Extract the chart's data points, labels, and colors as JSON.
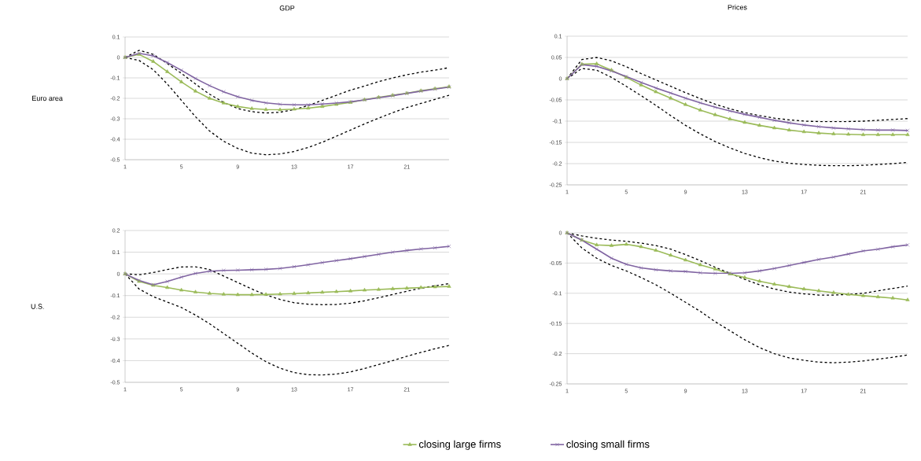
{
  "chart_data": [
    {
      "type": "line",
      "title": "GDP",
      "ylabel": "Euro area",
      "x": [
        1,
        2,
        3,
        4,
        5,
        6,
        7,
        8,
        9,
        10,
        11,
        12,
        13,
        14,
        15,
        16,
        17,
        18,
        19,
        20,
        21,
        22,
        23,
        24
      ],
      "xlim": [
        1,
        24
      ],
      "xticks": [
        1,
        5,
        9,
        13,
        17,
        21
      ],
      "ylim": [
        -0.5,
        0.1
      ],
      "yticks": [
        0.1,
        0,
        -0.1,
        -0.2,
        -0.3,
        -0.4,
        -0.5
      ],
      "grid": "y",
      "series": [
        {
          "color": "#9bbb59",
          "marker": "triangle",
          "line_style": "solid",
          "values": [
            0,
            0.015,
            -0.02,
            -0.07,
            -0.12,
            -0.165,
            -0.2,
            -0.223,
            -0.24,
            -0.25,
            -0.255,
            -0.256,
            -0.253,
            -0.248,
            -0.24,
            -0.23,
            -0.22,
            -0.207,
            -0.195,
            -0.185,
            -0.175,
            -0.163,
            -0.153,
            -0.143
          ]
        },
        {
          "color": "#8064a2",
          "marker": "cross",
          "line_style": "solid",
          "values": [
            0,
            0.02,
            0.008,
            -0.025,
            -0.063,
            -0.103,
            -0.138,
            -0.168,
            -0.192,
            -0.21,
            -0.222,
            -0.229,
            -0.232,
            -0.232,
            -0.228,
            -0.223,
            -0.217,
            -0.208,
            -0.197,
            -0.187,
            -0.176,
            -0.165,
            -0.155,
            -0.145
          ]
        },
        {
          "color": "#000000",
          "marker": "none",
          "line_style": "dashed",
          "values": [
            0,
            0.035,
            0.015,
            -0.03,
            -0.078,
            -0.13,
            -0.18,
            -0.22,
            -0.25,
            -0.265,
            -0.272,
            -0.268,
            -0.255,
            -0.235,
            -0.21,
            -0.185,
            -0.16,
            -0.14,
            -0.118,
            -0.1,
            -0.085,
            -0.072,
            -0.062,
            -0.05
          ]
        },
        {
          "color": "#000000",
          "marker": "none",
          "line_style": "dashed",
          "values": [
            0,
            -0.015,
            -0.06,
            -0.13,
            -0.21,
            -0.29,
            -0.36,
            -0.41,
            -0.445,
            -0.468,
            -0.476,
            -0.472,
            -0.46,
            -0.44,
            -0.415,
            -0.385,
            -0.355,
            -0.325,
            -0.297,
            -0.27,
            -0.245,
            -0.225,
            -0.205,
            -0.185
          ]
        }
      ]
    },
    {
      "type": "line",
      "title": "Prices",
      "x": [
        1,
        2,
        3,
        4,
        5,
        6,
        7,
        8,
        9,
        10,
        11,
        12,
        13,
        14,
        15,
        16,
        17,
        18,
        19,
        20,
        21,
        22,
        23,
        24
      ],
      "xlim": [
        1,
        24
      ],
      "xticks": [
        1,
        5,
        9,
        13,
        17,
        21
      ],
      "ylim": [
        -0.25,
        0.1
      ],
      "yticks": [
        0.1,
        0.05,
        0,
        -0.05,
        -0.1,
        -0.15,
        -0.2,
        -0.25
      ],
      "grid": "y",
      "series": [
        {
          "color": "#9bbb59",
          "marker": "triangle",
          "line_style": "solid",
          "values": [
            0,
            0.034,
            0.035,
            0.02,
            0.003,
            -0.015,
            -0.031,
            -0.046,
            -0.061,
            -0.074,
            -0.085,
            -0.095,
            -0.103,
            -0.11,
            -0.116,
            -0.121,
            -0.125,
            -0.128,
            -0.13,
            -0.131,
            -0.132,
            -0.132,
            -0.132,
            -0.132
          ]
        },
        {
          "color": "#8064a2",
          "marker": "cross",
          "line_style": "solid",
          "values": [
            0,
            0.033,
            0.029,
            0.018,
            0.005,
            -0.009,
            -0.022,
            -0.034,
            -0.046,
            -0.057,
            -0.067,
            -0.076,
            -0.084,
            -0.091,
            -0.098,
            -0.104,
            -0.109,
            -0.113,
            -0.116,
            -0.118,
            -0.12,
            -0.121,
            -0.121,
            -0.122
          ]
        },
        {
          "color": "#000000",
          "marker": "none",
          "line_style": "dashed",
          "values": [
            0,
            0.045,
            0.05,
            0.042,
            0.028,
            0.012,
            -0.003,
            -0.018,
            -0.033,
            -0.047,
            -0.06,
            -0.071,
            -0.08,
            -0.087,
            -0.093,
            -0.097,
            -0.1,
            -0.101,
            -0.101,
            -0.101,
            -0.1,
            -0.098,
            -0.096,
            -0.094
          ]
        },
        {
          "color": "#000000",
          "marker": "none",
          "line_style": "dashed",
          "values": [
            0,
            0.024,
            0.02,
            0.003,
            -0.018,
            -0.04,
            -0.063,
            -0.087,
            -0.11,
            -0.13,
            -0.148,
            -0.163,
            -0.176,
            -0.186,
            -0.194,
            -0.199,
            -0.202,
            -0.204,
            -0.205,
            -0.205,
            -0.204,
            -0.202,
            -0.2,
            -0.197
          ]
        }
      ]
    },
    {
      "type": "line",
      "ylabel": "U.S.",
      "legend": "bottom",
      "x": [
        1,
        2,
        3,
        4,
        5,
        6,
        7,
        8,
        9,
        10,
        11,
        12,
        13,
        14,
        15,
        16,
        17,
        18,
        19,
        20,
        21,
        22,
        23,
        24
      ],
      "xlim": [
        1,
        24
      ],
      "xticks": [
        1,
        5,
        9,
        13,
        17,
        21
      ],
      "ylim": [
        -0.5,
        0.2
      ],
      "yticks": [
        0.2,
        0.1,
        0,
        -0.1,
        -0.2,
        -0.3,
        -0.4,
        -0.5
      ],
      "grid": "y",
      "series": [
        {
          "name": "closing large firms",
          "color": "#9bbb59",
          "marker": "triangle",
          "line_style": "solid",
          "values": [
            0,
            -0.035,
            -0.053,
            -0.063,
            -0.075,
            -0.084,
            -0.09,
            -0.094,
            -0.096,
            -0.096,
            -0.095,
            -0.093,
            -0.091,
            -0.088,
            -0.085,
            -0.082,
            -0.079,
            -0.075,
            -0.072,
            -0.069,
            -0.066,
            -0.063,
            -0.06,
            -0.058
          ]
        },
        {
          "name": "closing small firms",
          "color": "#8064a2",
          "marker": "cross",
          "line_style": "solid",
          "values": [
            0,
            -0.03,
            -0.05,
            -0.035,
            -0.015,
            0.002,
            0.012,
            0.016,
            0.017,
            0.019,
            0.021,
            0.025,
            0.033,
            0.042,
            0.052,
            0.061,
            0.07,
            0.08,
            0.09,
            0.1,
            0.108,
            0.115,
            0.12,
            0.127
          ]
        },
        {
          "color": "#000000",
          "marker": "none",
          "line_style": "dashed",
          "values": [
            0,
            -0.004,
            0.006,
            0.02,
            0.032,
            0.033,
            0.02,
            -0.01,
            -0.04,
            -0.07,
            -0.097,
            -0.118,
            -0.133,
            -0.14,
            -0.142,
            -0.141,
            -0.135,
            -0.124,
            -0.11,
            -0.095,
            -0.08,
            -0.066,
            -0.055,
            -0.045
          ]
        },
        {
          "color": "#000000",
          "marker": "none",
          "line_style": "dashed",
          "values": [
            0,
            -0.07,
            -0.105,
            -0.13,
            -0.155,
            -0.19,
            -0.23,
            -0.275,
            -0.32,
            -0.365,
            -0.405,
            -0.435,
            -0.455,
            -0.465,
            -0.466,
            -0.462,
            -0.452,
            -0.436,
            -0.418,
            -0.4,
            -0.38,
            -0.362,
            -0.345,
            -0.33
          ]
        }
      ]
    },
    {
      "type": "line",
      "x": [
        1,
        2,
        3,
        4,
        5,
        6,
        7,
        8,
        9,
        10,
        11,
        12,
        13,
        14,
        15,
        16,
        17,
        18,
        19,
        20,
        21,
        22,
        23,
        24
      ],
      "xlim": [
        1,
        24
      ],
      "xticks": [
        1,
        5,
        9,
        13,
        17,
        21
      ],
      "ylim": [
        -0.25,
        0
      ],
      "yticks": [
        0,
        -0.05,
        -0.1,
        -0.15,
        -0.2,
        -0.25
      ],
      "grid": "y",
      "series": [
        {
          "color": "#9bbb59",
          "marker": "triangle",
          "line_style": "solid",
          "values": [
            0,
            -0.012,
            -0.02,
            -0.021,
            -0.019,
            -0.023,
            -0.029,
            -0.037,
            -0.045,
            -0.053,
            -0.06,
            -0.068,
            -0.074,
            -0.08,
            -0.085,
            -0.089,
            -0.093,
            -0.096,
            -0.099,
            -0.102,
            -0.104,
            -0.106,
            -0.108,
            -0.111
          ]
        },
        {
          "color": "#8064a2",
          "marker": "cross",
          "line_style": "solid",
          "values": [
            0,
            -0.012,
            -0.027,
            -0.042,
            -0.052,
            -0.058,
            -0.061,
            -0.063,
            -0.064,
            -0.066,
            -0.067,
            -0.067,
            -0.066,
            -0.063,
            -0.059,
            -0.054,
            -0.049,
            -0.044,
            -0.04,
            -0.035,
            -0.03,
            -0.027,
            -0.023,
            -0.02
          ]
        },
        {
          "color": "#000000",
          "marker": "none",
          "line_style": "dashed",
          "values": [
            0,
            -0.005,
            -0.009,
            -0.012,
            -0.014,
            -0.017,
            -0.021,
            -0.027,
            -0.036,
            -0.046,
            -0.057,
            -0.067,
            -0.077,
            -0.086,
            -0.093,
            -0.098,
            -0.101,
            -0.103,
            -0.103,
            -0.102,
            -0.1,
            -0.096,
            -0.092,
            -0.088
          ]
        },
        {
          "color": "#000000",
          "marker": "none",
          "line_style": "dashed",
          "values": [
            0,
            -0.025,
            -0.042,
            -0.054,
            -0.063,
            -0.074,
            -0.086,
            -0.1,
            -0.115,
            -0.13,
            -0.147,
            -0.162,
            -0.177,
            -0.19,
            -0.2,
            -0.207,
            -0.211,
            -0.214,
            -0.215,
            -0.214,
            -0.212,
            -0.209,
            -0.206,
            -0.202
          ]
        }
      ]
    }
  ]
}
